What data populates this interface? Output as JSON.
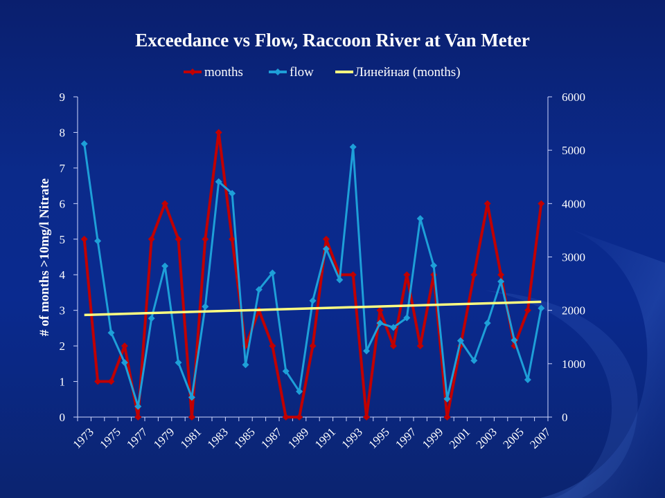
{
  "chart_data": {
    "type": "line",
    "title": "Exceedance vs Flow,  Raccoon River at Van Meter",
    "ylabel": "# of  months >10mg/l Nitrate",
    "y2label": "",
    "xlabel": "",
    "ylim": [
      0,
      9
    ],
    "y2lim": [
      0,
      6000
    ],
    "yticks": [
      "0",
      "1",
      "2",
      "3",
      "4",
      "5",
      "6",
      "7",
      "8",
      "9"
    ],
    "y2ticks": [
      "0",
      "1000",
      "2000",
      "3000",
      "4000",
      "5000",
      "6000"
    ],
    "x": [
      1973,
      1974,
      1975,
      1976,
      1977,
      1978,
      1979,
      1980,
      1981,
      1982,
      1983,
      1984,
      1985,
      1986,
      1987,
      1988,
      1989,
      1990,
      1991,
      1992,
      1993,
      1994,
      1995,
      1996,
      1997,
      1998,
      1999,
      2000,
      2001,
      2002,
      2003,
      2004,
      2005,
      2006,
      2007
    ],
    "xticks": [
      "1973",
      "1975",
      "1977",
      "1979",
      "1981",
      "1983",
      "1985",
      "1987",
      "1989",
      "1991",
      "1993",
      "1995",
      "1997",
      "1999",
      "2001",
      "2003",
      "2005",
      "2007"
    ],
    "legend_position": "top",
    "grid": false,
    "series": [
      {
        "name": "months",
        "axis": "left",
        "color": "#c00000",
        "marker": "diamond",
        "values": [
          5,
          1,
          1,
          2,
          0,
          5,
          6,
          5,
          0,
          5,
          8,
          5,
          2,
          3,
          2,
          0,
          0,
          2,
          5,
          4,
          4,
          0,
          3,
          2,
          4,
          2,
          4,
          0,
          2,
          4,
          6,
          4,
          2,
          3,
          6
        ]
      },
      {
        "name": "flow",
        "axis": "right",
        "color": "#1e9fd8",
        "marker": "diamond",
        "values": [
          5120,
          3300,
          1580,
          1020,
          200,
          1850,
          2830,
          1020,
          370,
          2070,
          4410,
          4190,
          980,
          2390,
          2700,
          860,
          480,
          2180,
          3150,
          2570,
          5060,
          1240,
          1760,
          1680,
          1860,
          3720,
          2840,
          340,
          1430,
          1060,
          1760,
          2540,
          1440,
          700,
          2040
        ]
      },
      {
        "name": "Линейная (months)",
        "type": "trendline",
        "axis": "left",
        "color": "#ffff80",
        "start": 2.87,
        "end": 3.24
      }
    ]
  }
}
